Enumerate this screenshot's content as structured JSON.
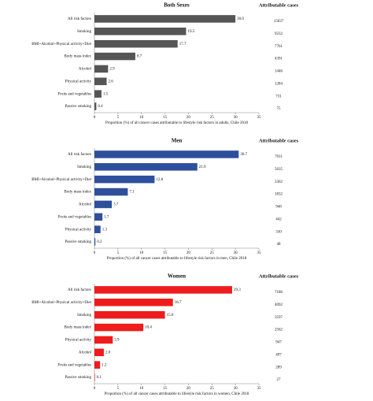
{
  "chart_data": [
    {
      "type": "bar",
      "orientation": "horizontal",
      "title": "Both Sexes",
      "color": "#555555",
      "categories": [
        "All risk factors",
        "Smoking",
        "BMI+Alcohol+Physical activity+Diet",
        "Body mass index",
        "Alcohol",
        "Physical activity",
        "Fruits and vegetables",
        "Passive smoking"
      ],
      "values": [
        30.0,
        19.5,
        17.7,
        8.7,
        2.9,
        2.6,
        1.5,
        0.4
      ],
      "value_labels": [
        "30.0",
        "19.5",
        "17.7",
        "8.7",
        "2.9",
        "2.6",
        "1.5",
        "0.4"
      ],
      "xlim": [
        0,
        35
      ],
      "xticks": [
        0,
        5,
        10,
        15,
        20,
        25,
        30,
        35
      ],
      "x_label": "Proportion (%) of all cancer cases attributable to lifestyle risk factors in adults, Chile 2018",
      "cases_title": "Attributable cases",
      "cases": [
        15037,
        9232,
        7761,
        4391,
        1446,
        1284,
        731,
        75
      ]
    },
    {
      "type": "bar",
      "orientation": "horizontal",
      "title": "Men",
      "color": "#2e4f9c",
      "categories": [
        "All risk factors",
        "Smoking",
        "BMI+Alcohol+Physical activity+Diet",
        "Body mass index",
        "Alcohol",
        "Fruits and vegetables",
        "Physical activity",
        "Passive smoking"
      ],
      "values": [
        30.7,
        21.9,
        12.8,
        7.1,
        3.7,
        1.7,
        1.3,
        0.2
      ],
      "value_labels": [
        "30.7",
        "21.9",
        "12.8",
        "7.1",
        "3.7",
        "1.7",
        "1.3",
        "0.2"
      ],
      "xlim": [
        0,
        35
      ],
      "xticks": [
        0,
        5,
        10,
        15,
        20,
        25,
        30,
        35
      ],
      "x_label": "Proportion (%) of all cancer cases attributable to lifestyle risk factors in men, Chile 2018",
      "cases_title": "Attributable cases",
      "cases": [
        7911,
        5635,
        3302,
        1832,
        948,
        442,
        330,
        48
      ]
    },
    {
      "type": "bar",
      "orientation": "horizontal",
      "title": "Women",
      "color": "#ee1c1c",
      "categories": [
        "All risk factors",
        "BMI+Alcohol+Physical activity+Diet",
        "Smoking",
        "Body mass index",
        "Physical activity",
        "Alcohol",
        "Fruits and vegetables",
        "Passive smoking"
      ],
      "values": [
        29.3,
        16.7,
        15.0,
        10.4,
        3.9,
        2.0,
        1.2,
        0.1
      ],
      "value_labels": [
        "29.3",
        "16.7",
        "15.0",
        "10.4",
        "3.9",
        "2.0",
        "1.2",
        "0.1"
      ],
      "xlim": [
        0,
        35
      ],
      "xticks": [
        0,
        5,
        10,
        15,
        20,
        25,
        30,
        35
      ],
      "x_label": "Proportion (%) of all cancer cases attributable to lifestyle risk factors in women, Chile 2018",
      "cases_title": "Attributable cases",
      "cases": [
        7186,
        4092,
        3597,
        2562,
        947,
        497,
        289,
        27
      ]
    }
  ]
}
